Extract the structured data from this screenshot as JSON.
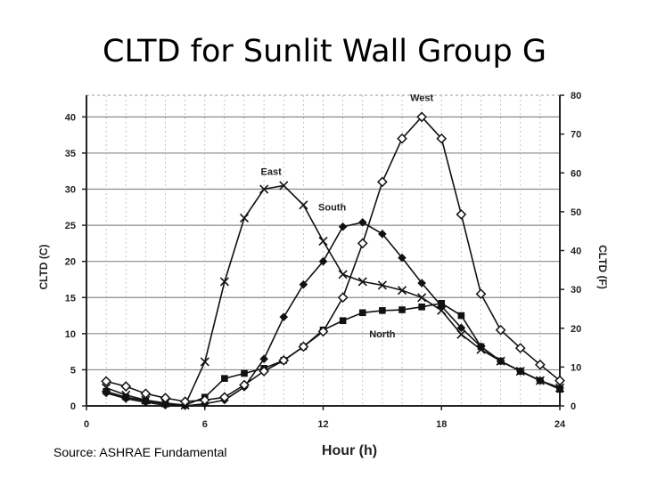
{
  "slide": {
    "title": "CLTD for Sunlit Wall Group G",
    "source": "Source: ASHRAE Fundamental"
  },
  "chart_data": {
    "type": "line",
    "xlabel": "Hour (h)",
    "ylabel": "CLTD (C)",
    "ylabel_right": "CLTD (F)",
    "xlim": [
      0,
      24
    ],
    "ylim": [
      0,
      43
    ],
    "ylim_right": [
      0,
      80
    ],
    "x_ticks": [
      0,
      6,
      12,
      18,
      24
    ],
    "y_ticks": [
      0,
      5,
      10,
      15,
      20,
      25,
      30,
      35,
      40
    ],
    "y_ticks_right": [
      0,
      10,
      20,
      30,
      40,
      50,
      60,
      70,
      80
    ],
    "grid": true,
    "x": [
      1,
      2,
      3,
      4,
      5,
      6,
      7,
      8,
      9,
      10,
      11,
      12,
      13,
      14,
      15,
      16,
      17,
      18,
      19,
      20,
      21,
      22,
      23,
      24
    ],
    "series": [
      {
        "name": "North",
        "marker": "square",
        "values": [
          2,
          1.2,
          0.7,
          0.3,
          0.1,
          1.2,
          3.8,
          4.5,
          5.2,
          6.3,
          8.2,
          10.5,
          11.8,
          12.9,
          13.2,
          13.3,
          13.7,
          14.2,
          12.5,
          8.2,
          6.2,
          4.8,
          3.5,
          2.3
        ],
        "color": "#111111"
      },
      {
        "name": "East",
        "marker": "x",
        "values": [
          2.5,
          1.5,
          0.8,
          0.4,
          0.1,
          6.1,
          17.2,
          26,
          30,
          30.5,
          27.8,
          22.8,
          18.2,
          17.2,
          16.7,
          16,
          15,
          13.2,
          9.9,
          7.8,
          6.2,
          4.8,
          3.5,
          2.5
        ],
        "color": "#111111"
      },
      {
        "name": "South",
        "marker": "diamond-filled",
        "values": [
          1.8,
          1,
          0.5,
          0.1,
          0,
          0.3,
          0.8,
          2.6,
          6.5,
          12.3,
          16.8,
          20,
          24.8,
          25.4,
          23.8,
          20.5,
          17,
          13.8,
          10.8,
          8.2,
          6.2,
          4.8,
          3.5,
          2.5
        ],
        "color": "#111111"
      },
      {
        "name": "West",
        "marker": "diamond-open",
        "values": [
          3.4,
          2.7,
          1.7,
          1.1,
          0.6,
          0.8,
          1.2,
          2.9,
          4.8,
          6.3,
          8.2,
          10.3,
          15,
          22.5,
          31,
          37,
          40,
          37,
          26.5,
          15.5,
          10.5,
          8,
          5.7,
          3.5
        ],
        "color": "#111111"
      }
    ]
  }
}
